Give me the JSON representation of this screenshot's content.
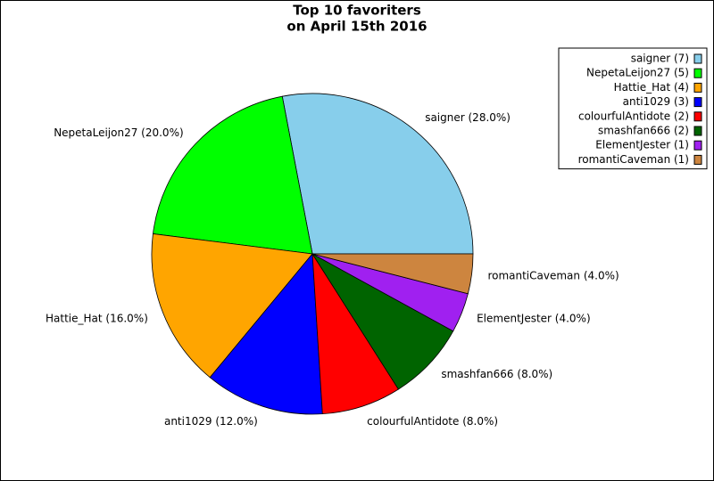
{
  "chart_data": {
    "type": "pie",
    "title": "Top 10 favoriters",
    "subtitle": "on April 15th 2016",
    "values": [
      28,
      20,
      16,
      12,
      8,
      8,
      4,
      4
    ],
    "value_labels": [
      "saigner (28.0%)",
      "NepetaLeijon27 (20.0%)",
      "Hattie_Hat (16.0%)",
      "anti1029 (12.0%)",
      "colourfulAntidote (8.0%)",
      "smashfan666 (8.0%)",
      "ElementJester (4.0%)",
      "romantiCaveman (4.0%)"
    ],
    "legend": [
      "saigner (7)",
      "NepetaLeijon27 (5)",
      "Hattie_Hat (4)",
      "anti1029 (3)",
      "colourfulAntidote (2)",
      "smashfan666 (2)",
      "ElementJester (1)",
      "romantiCaveman (1)"
    ],
    "colors": [
      "#87ceeb",
      "#00ff00",
      "#ffa500",
      "#0000ff",
      "#ff0000",
      "#006400",
      "#a020f0",
      "#cd853f"
    ],
    "legend_position": "upper right"
  }
}
